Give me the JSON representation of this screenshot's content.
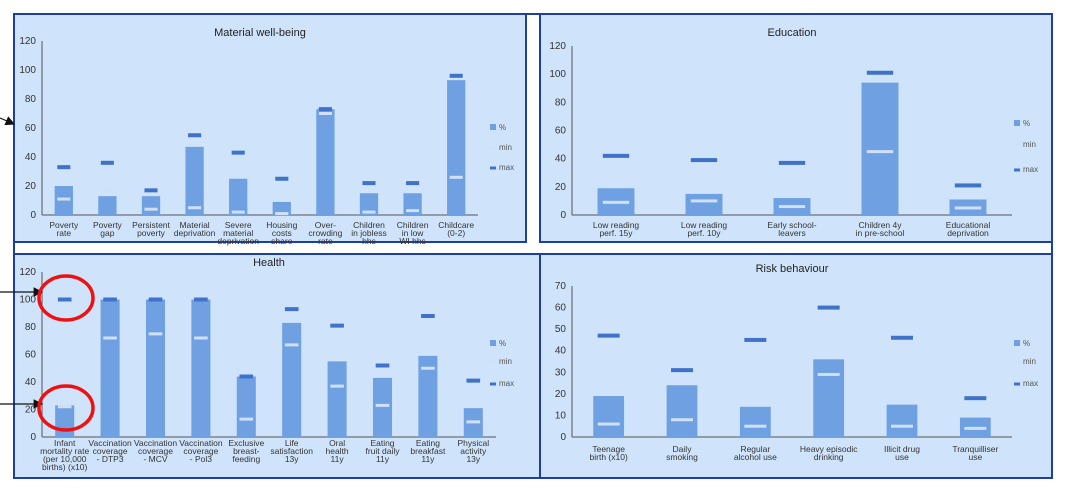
{
  "colors": {
    "panel_bg": "#cfe4fb",
    "panel_border": "#1f3fa0",
    "bar": "#6fa1e2",
    "max_marker": "#3f72c8",
    "min_marker": "#cfe0f7",
    "annotation": "#ee1111"
  },
  "legend": [
    "%",
    "min",
    "max"
  ],
  "chart_data": [
    {
      "type": "bar",
      "title": "Material well-being",
      "ylim": [
        0,
        120
      ],
      "yticks": [
        0,
        20,
        40,
        60,
        80,
        100,
        120
      ],
      "categories": [
        [
          "Poverty",
          "rate"
        ],
        [
          "Poverty",
          "gap"
        ],
        [
          "Persistent",
          "poverty"
        ],
        [
          "Material",
          "deprivation"
        ],
        [
          "Severe",
          "material",
          "deprivation"
        ],
        [
          "Housing",
          "costs",
          "share"
        ],
        [
          "Over-",
          "crowding",
          "rate"
        ],
        [
          "Children",
          "in jobless",
          "hhs"
        ],
        [
          "Children",
          "in low",
          "WI hhs"
        ],
        [
          "Childcare",
          "(0-2)"
        ]
      ],
      "series": [
        {
          "name": "%",
          "values": [
            20,
            13,
            13,
            47,
            25,
            9,
            73,
            15,
            15,
            93
          ]
        },
        {
          "name": "min",
          "values": [
            11,
            17,
            4,
            5,
            2,
            1,
            70,
            2,
            3,
            26
          ]
        },
        {
          "name": "max",
          "values": [
            33,
            36,
            17,
            55,
            43,
            25,
            73,
            22,
            22,
            96
          ]
        }
      ]
    },
    {
      "type": "bar",
      "title": "Education",
      "ylim": [
        0,
        120
      ],
      "yticks": [
        0,
        20,
        40,
        60,
        80,
        100,
        120
      ],
      "categories": [
        [
          "Low reading",
          "perf. 15y"
        ],
        [
          "Low reading",
          "perf. 10y"
        ],
        [
          "Early school-",
          "leavers"
        ],
        [
          "Children 4y",
          "in pre-school"
        ],
        [
          "Educational",
          "deprivation"
        ]
      ],
      "series": [
        {
          "name": "%",
          "values": [
            19,
            15,
            12,
            94,
            11
          ]
        },
        {
          "name": "min",
          "values": [
            9,
            10,
            6,
            45,
            5
          ]
        },
        {
          "name": "max",
          "values": [
            42,
            39,
            37,
            101,
            21
          ]
        }
      ]
    },
    {
      "type": "bar",
      "title": "Health",
      "ylim": [
        0,
        120
      ],
      "yticks": [
        0,
        20,
        40,
        60,
        80,
        100,
        120
      ],
      "categories": [
        [
          "Infant",
          "mortality rate",
          "(per 10,000",
          "births) (x10)"
        ],
        [
          "Vaccination",
          "coverage",
          "- DTP3"
        ],
        [
          "Vaccination",
          "coverage",
          "- MCV"
        ],
        [
          "Vaccination",
          "coverage",
          "- Pol3"
        ],
        [
          "Exclusive",
          "breast-",
          "feeding"
        ],
        [
          "Life",
          "satisfaction",
          "13y"
        ],
        [
          "Oral",
          "health",
          "11y"
        ],
        [
          "Eating",
          "fruit daily",
          "11y"
        ],
        [
          "Eating",
          "breakfast",
          "11y"
        ],
        [
          "Physical",
          "activity",
          "13y"
        ]
      ],
      "series": [
        {
          "name": "%",
          "values": [
            23,
            100,
            100,
            100,
            44,
            83,
            55,
            43,
            59,
            21
          ]
        },
        {
          "name": "min",
          "values": [
            22,
            72,
            75,
            72,
            13,
            67,
            37,
            23,
            50,
            11
          ]
        },
        {
          "name": "max",
          "values": [
            100,
            100,
            100,
            100,
            44,
            93,
            81,
            52,
            88,
            41
          ]
        }
      ]
    },
    {
      "type": "bar",
      "title": "Risk behaviour",
      "ylim": [
        0,
        70
      ],
      "yticks": [
        0,
        10,
        20,
        30,
        40,
        50,
        60,
        70
      ],
      "categories": [
        [
          "Teenage",
          "birth (x10)"
        ],
        [
          "Daily",
          "smoking"
        ],
        [
          "Regular",
          "alcohol use"
        ],
        [
          "Heavy episodic",
          "drinking"
        ],
        [
          "Illicit drug",
          "use"
        ],
        [
          "Tranquilliser",
          "use"
        ]
      ],
      "series": [
        {
          "name": "%",
          "values": [
            19,
            24,
            14,
            36,
            15,
            9
          ]
        },
        {
          "name": "min",
          "values": [
            6,
            8,
            5,
            29,
            5,
            4
          ]
        },
        {
          "name": "max",
          "values": [
            47,
            31,
            45,
            60,
            46,
            18
          ]
        }
      ]
    }
  ]
}
